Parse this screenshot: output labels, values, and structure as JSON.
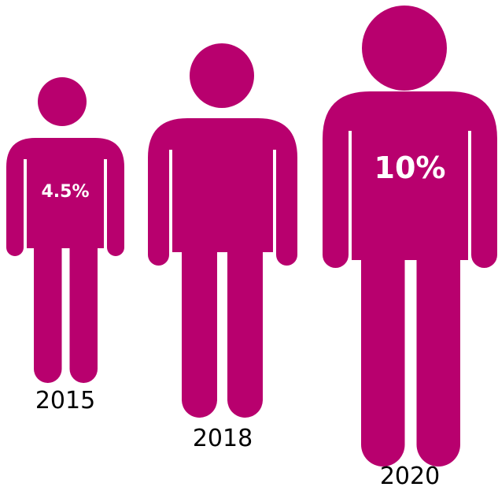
{
  "chart_data": {
    "type": "pictograph",
    "title": "",
    "color": "#b8006e",
    "items": [
      {
        "category": "2015",
        "value": 4.5,
        "value_label": "4.5%"
      },
      {
        "category": "2018",
        "value": null,
        "value_label": ""
      },
      {
        "category": "2020",
        "value": 10,
        "value_label": "10%"
      }
    ]
  }
}
